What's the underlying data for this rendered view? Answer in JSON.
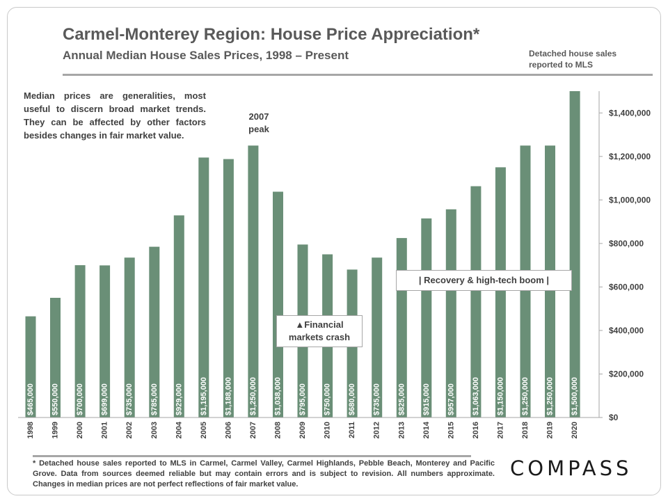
{
  "title": "Carmel-Monterey Region: House Price Appreciation*",
  "subtitle": "Annual Median House Sales Prices, 1998 – Present",
  "source_note": "Detached house sales reported to MLS",
  "median_note": "Median prices are generalities, most useful to discern broad market trends. They can be affected by other factors besides changes in fair market value.",
  "annotations": {
    "peak": "2007 peak",
    "crash": "▲Financial markets crash",
    "recovery": "|   Recovery & high-tech boom   |"
  },
  "footnote": "* Detached house sales reported to MLS in Carmel, Carmel Valley, Carmel Highlands, Pebble Beach, Monterey and Pacific Grove. Data from sources deemed reliable but may contain errors and is subject to revision. All numbers approximate. Changes in median prices are not perfect reflections of fair market value.",
  "logo": "COMPASS",
  "colors": {
    "bar": "#6a8f77",
    "text": "#404040",
    "title": "#595959"
  },
  "chart_data": {
    "type": "bar",
    "categories": [
      "1998",
      "1999",
      "2000",
      "2001",
      "2002",
      "2003",
      "2004",
      "2005",
      "2006",
      "2007",
      "2008",
      "2009",
      "2010",
      "2011",
      "2012",
      "2013",
      "2014",
      "2015",
      "2016",
      "2017",
      "2018",
      "2019",
      "2020"
    ],
    "values": [
      465000,
      550000,
      700000,
      699000,
      735000,
      785000,
      929000,
      1195000,
      1188000,
      1250000,
      1038000,
      795000,
      750000,
      680000,
      735000,
      825000,
      915000,
      957000,
      1063000,
      1150000,
      1250000,
      1250000,
      1500000
    ],
    "data_labels": [
      "$465,000",
      "$550,000",
      "$700,000",
      "$699,000",
      "$735,000",
      "$785,000",
      "$929,000",
      "$1,195,000",
      "$1,188,000",
      "$1,250,000",
      "$1,038,000",
      "$795,000",
      "$750,000",
      "$680,000",
      "$735,000",
      "$825,000",
      "$915,000",
      "$957,000",
      "$1,063,000",
      "$1,150,000",
      "$1,250,000",
      "$1,250,000",
      "$1,500,000"
    ],
    "yticks": [
      0,
      200000,
      400000,
      600000,
      800000,
      1000000,
      1200000,
      1400000
    ],
    "ytick_labels": [
      "$0",
      "$200,000",
      "$400,000",
      "$600,000",
      "$800,000",
      "$1,000,000",
      "$1,200,000",
      "$1,400,000"
    ],
    "ylim": [
      0,
      1500000
    ],
    "y_axis_side": "right",
    "grid": false,
    "legend": "none"
  }
}
